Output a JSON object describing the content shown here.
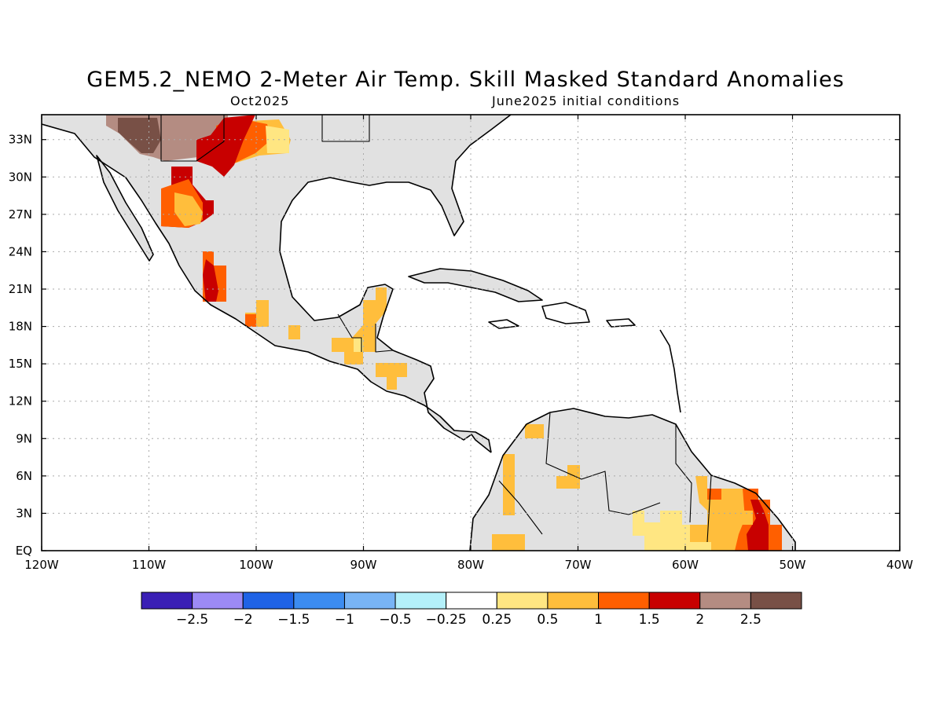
{
  "header": {
    "title": "GEM5.2_NEMO 2-Meter Air Temp. Skill Masked Standard Anomalies",
    "valid_month": "Oct2025",
    "init": "June2025 initial conditions"
  },
  "map": {
    "lon_range": [
      -120,
      -40
    ],
    "lat_range": [
      0,
      35
    ],
    "lat_ticks": [
      "EQ",
      "3N",
      "6N",
      "9N",
      "12N",
      "15N",
      "18N",
      "21N",
      "24N",
      "27N",
      "30N",
      "33N"
    ],
    "lon_ticks": [
      "120W",
      "110W",
      "100W",
      "90W",
      "80W",
      "70W",
      "60W",
      "50W",
      "40W"
    ],
    "grid": true,
    "land_color": "#e1e1e1",
    "coast_color": "#000000"
  },
  "legend": {
    "colors": [
      "#3a1fb5",
      "#9c8af5",
      "#1f63e6",
      "#3c8cf0",
      "#78b4f5",
      "#b4f0fa",
      "#ffffff",
      "#ffe682",
      "#ffbe3c",
      "#ff5f00",
      "#c80000",
      "#b48c82",
      "#785046"
    ],
    "labels": [
      "-2.5",
      "-2",
      "-1.5",
      "-1",
      "-0.5",
      "-0.25",
      "0.25",
      "0.5",
      "1",
      "1.5",
      "2",
      "2.5"
    ]
  }
}
